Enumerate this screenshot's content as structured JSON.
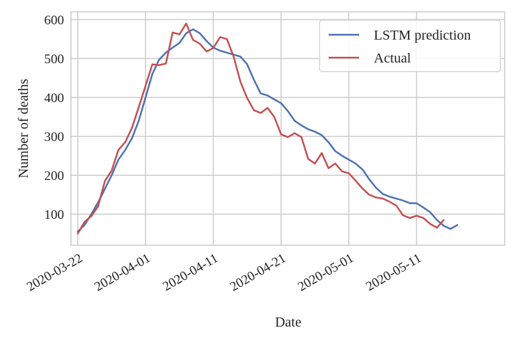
{
  "chart_data": {
    "type": "line",
    "title": "",
    "xlabel": "Date",
    "ylabel": "Number of deaths",
    "x_start": "2020-03-22",
    "xlim": [
      "2020-03-21",
      "2020-05-24"
    ],
    "ylim": [
      20,
      620
    ],
    "x_ticks": [
      "2020-03-22",
      "2020-04-01",
      "2020-04-11",
      "2020-04-21",
      "2020-05-01",
      "2020-05-11"
    ],
    "y_ticks": [
      100,
      200,
      300,
      400,
      500,
      600
    ],
    "grid": true,
    "legend": "top-right",
    "series": [
      {
        "name": "LSTM prediction",
        "color": "#4c72b0",
        "values": [
          55,
          72,
          100,
          130,
          165,
          200,
          240,
          265,
          295,
          340,
          400,
          460,
          497,
          515,
          528,
          540,
          565,
          575,
          565,
          545,
          528,
          520,
          515,
          510,
          505,
          485,
          445,
          410,
          405,
          395,
          385,
          365,
          340,
          328,
          318,
          312,
          303,
          285,
          262,
          250,
          240,
          230,
          215,
          190,
          168,
          152,
          145,
          140,
          135,
          128,
          128,
          117,
          105,
          85,
          70,
          62,
          72
        ]
      },
      {
        "name": "Actual",
        "color": "#c44e52",
        "values": [
          50,
          80,
          95,
          120,
          185,
          212,
          265,
          285,
          322,
          375,
          430,
          485,
          483,
          487,
          567,
          562,
          590,
          548,
          538,
          518,
          527,
          555,
          550,
          505,
          440,
          398,
          367,
          360,
          373,
          350,
          305,
          298,
          308,
          298,
          242,
          230,
          257,
          218,
          230,
          210,
          205,
          186,
          166,
          150,
          143,
          140,
          132,
          122,
          97,
          90,
          96,
          90,
          75,
          65,
          85
        ]
      }
    ]
  }
}
